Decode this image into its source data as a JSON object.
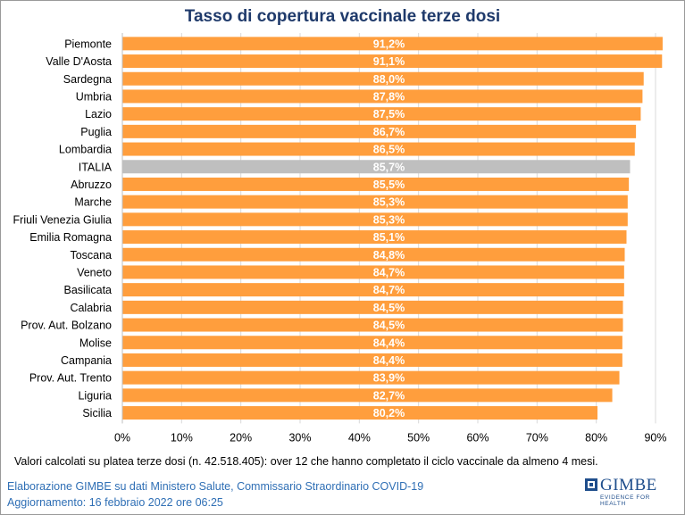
{
  "chart_data": {
    "type": "bar",
    "orientation": "horizontal",
    "title": "Tasso di copertura vaccinale terze dosi",
    "categories": [
      "Piemonte",
      "Valle D'Aosta",
      "Sardegna",
      "Umbria",
      "Lazio",
      "Puglia",
      "Lombardia",
      "ITALIA",
      "Abruzzo",
      "Marche",
      "Friuli Venezia Giulia",
      "Emilia Romagna",
      "Toscana",
      "Veneto",
      "Basilicata",
      "Calabria",
      "Prov. Aut. Bolzano",
      "Molise",
      "Campania",
      "Prov. Aut. Trento",
      "Liguria",
      "Sicilia"
    ],
    "values": [
      91.2,
      91.1,
      88.0,
      87.8,
      87.5,
      86.7,
      86.5,
      85.7,
      85.5,
      85.3,
      85.3,
      85.1,
      84.8,
      84.7,
      84.7,
      84.5,
      84.5,
      84.4,
      84.4,
      83.9,
      82.7,
      80.2
    ],
    "data_labels": [
      "91,2%",
      "91,1%",
      "88,0%",
      "87,8%",
      "87,5%",
      "86,7%",
      "86,5%",
      "85,7%",
      "85,5%",
      "85,3%",
      "85,3%",
      "85,1%",
      "84,8%",
      "84,7%",
      "84,7%",
      "84,5%",
      "84,5%",
      "84,4%",
      "84,4%",
      "83,9%",
      "82,7%",
      "80,2%"
    ],
    "highlight_category": "ITALIA",
    "xlim": [
      0,
      90
    ],
    "x_ticks": [
      0,
      10,
      20,
      30,
      40,
      50,
      60,
      70,
      80,
      90
    ],
    "x_tick_labels": [
      "0%",
      "10%",
      "20%",
      "30%",
      "40%",
      "50%",
      "60%",
      "70%",
      "80%",
      "90%"
    ],
    "xlabel": "",
    "ylabel": "",
    "grid": "vertical",
    "colors": {
      "bar": "#FF9E3D",
      "highlight": "#BFBFBF",
      "grid": "#d9d9d9",
      "title": "#1f3a6b"
    }
  },
  "note": "Valori calcolati su platea terze dosi (n. 42.518.405): over 12 che hanno completato il ciclo vaccinale da almeno 4 mesi.",
  "footer": {
    "line1": "Elaborazione GIMBE su dati Ministero Salute, Commissario Straordinario COVID-19",
    "line2": "Aggiornamento: 16 febbraio 2022 ore 06:25"
  },
  "logo": {
    "name": "GIMBE",
    "tagline": "EVIDENCE FOR HEALTH"
  }
}
